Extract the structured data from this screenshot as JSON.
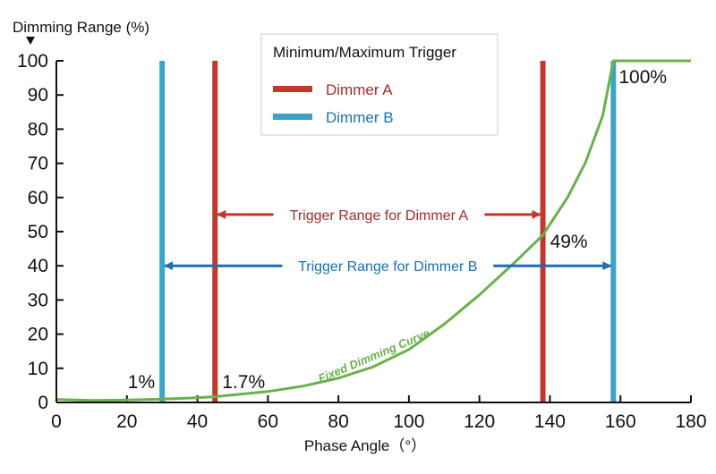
{
  "chart_data": {
    "type": "line",
    "ylabel": "Dimming Range (%)",
    "xlabel": "Phase Angle（°）",
    "xlim": [
      0,
      180
    ],
    "ylim": [
      0,
      100
    ],
    "x_ticks": [
      "0",
      "20",
      "40",
      "60",
      "80",
      "100",
      "120",
      "140",
      "160",
      "180"
    ],
    "y_ticks": [
      "0",
      "10",
      "20",
      "30",
      "40",
      "50",
      "60",
      "70",
      "80",
      "90",
      "100"
    ],
    "grid": false,
    "legend": {
      "title": "Minimum/Maximum Trigger",
      "placement": "top-center",
      "entries": [
        {
          "name": "Dimmer A",
          "color": "#c0392b",
          "text_color": "#a52a2a"
        },
        {
          "name": "Dimmer B",
          "color": "#3ba3c8",
          "text_color": "#1a6fb5"
        }
      ]
    },
    "curve": {
      "name": "Fixed Dimming Curve",
      "color": "#6ab04c",
      "x": [
        0,
        10,
        20,
        30,
        40,
        45,
        50,
        60,
        70,
        80,
        90,
        100,
        110,
        120,
        130,
        138,
        145,
        150,
        155,
        158,
        180
      ],
      "y": [
        0.9,
        0.6,
        0.7,
        1.0,
        1.4,
        1.7,
        2.2,
        3.2,
        4.8,
        7.1,
        10.5,
        15.5,
        22.9,
        31.5,
        41.0,
        49.0,
        60.0,
        70.0,
        84.0,
        100,
        100
      ]
    },
    "triggers": [
      {
        "series": "Dimmer A",
        "x": 45,
        "value_label": "1.7%"
      },
      {
        "series": "Dimmer A",
        "x": 138,
        "value_label": "49%"
      },
      {
        "series": "Dimmer B",
        "x": 30,
        "value_label": "1%"
      },
      {
        "series": "Dimmer B",
        "x": 158,
        "value_label": "100%"
      }
    ],
    "ranges": [
      {
        "label": "Trigger Range for Dimmer A",
        "from": 45,
        "to": 138,
        "y": 55,
        "color": "#c0392b",
        "text_color": "#a52a2a"
      },
      {
        "label": "Trigger Range for Dimmer B",
        "from": 30,
        "to": 158,
        "y": 40,
        "color": "#1a6fb5",
        "text_color": "#1a6fb5"
      }
    ]
  }
}
